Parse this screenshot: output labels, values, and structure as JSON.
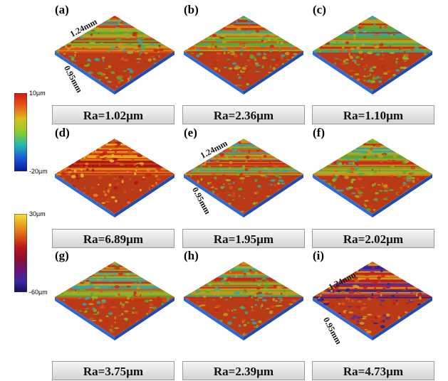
{
  "panels": [
    {
      "label": "(a)",
      "ra": "Ra=1.02µm",
      "colormap": "rg"
    },
    {
      "label": "(b)",
      "ra": "Ra=2.36µm",
      "colormap": "rg"
    },
    {
      "label": "(c)",
      "ra": "Ra=1.10µm",
      "colormap": "rg"
    },
    {
      "label": "(d)",
      "ra": "Ra=6.89µm",
      "colormap": "ry"
    },
    {
      "label": "(e)",
      "ra": "Ra=1.95µm",
      "colormap": "rg"
    },
    {
      "label": "(f)",
      "ra": "Ra=2.02µm",
      "colormap": "rg"
    },
    {
      "label": "(g)",
      "ra": "Ra=3.75µm",
      "colormap": "rg"
    },
    {
      "label": "(h)",
      "ra": "Ra=2.39µm",
      "colormap": "rg"
    },
    {
      "label": "(i)",
      "ra": "Ra=4.73µm",
      "colormap": "rp"
    }
  ],
  "dimensions": {
    "length": "1.24mm",
    "width": "0.95mm"
  },
  "scale_bars": [
    {
      "max": "10µm",
      "min": "-20µm",
      "colors": [
        "#d01818",
        "#e85a1a",
        "#d8c020",
        "#8ccc2a",
        "#22b8b0",
        "#1a58d8",
        "#081a9a"
      ]
    },
    {
      "max": "30µm",
      "min": "-60µm",
      "colors": [
        "#f4e040",
        "#e8a020",
        "#d85a18",
        "#b81818",
        "#8a1030",
        "#6a1470",
        "#3a2aa0",
        "#10105a"
      ]
    }
  ],
  "colormaps": {
    "rg": [
      "#c82814",
      "#d8501a",
      "#c89a1c",
      "#92b828",
      "#5ca832",
      "#3aa6a0"
    ],
    "ry": [
      "#c82814",
      "#dc4a16",
      "#e88a1a",
      "#e8c02a",
      "#c86218",
      "#a81810"
    ],
    "rp": [
      "#c82814",
      "#d05a1c",
      "#d8a020",
      "#b82020",
      "#5a2a9a",
      "#2a2090"
    ]
  }
}
